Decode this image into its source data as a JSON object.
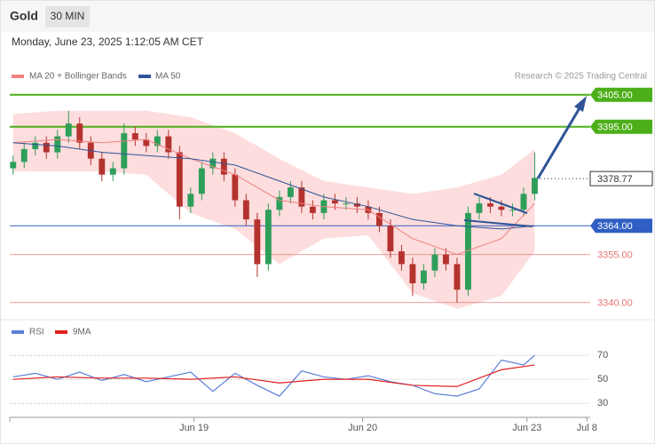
{
  "header": {
    "symbol": "Gold",
    "interval": "30 MIN",
    "timestamp": "Monday, June 23, 2025 1:12:05 AM CET"
  },
  "chart_data": [
    {
      "type": "candlestick",
      "credit": "Research © 2025 Trading Central",
      "up_color": "#2e9e5b",
      "down_color": "#b5332f",
      "xlim": [
        -0.3,
        52
      ],
      "ylim": [
        3336,
        3418
      ],
      "x": [
        0,
        1,
        2,
        3,
        4,
        5,
        6,
        7,
        8,
        9,
        10,
        11,
        12,
        13,
        14,
        15,
        16,
        17,
        18,
        19,
        20,
        21,
        22,
        23,
        24,
        25,
        26,
        27,
        28,
        29,
        30,
        31,
        32,
        33,
        34,
        35,
        36,
        37,
        38,
        39,
        40,
        41,
        42,
        43,
        44,
        45,
        46,
        47
      ],
      "open": [
        3382,
        3384,
        3388,
        3390,
        3387,
        3392,
        3396,
        3390,
        3385,
        3380,
        3382,
        3393,
        3391,
        3389,
        3392,
        3387,
        3370,
        3374,
        3382,
        3385,
        3380,
        3372,
        3366,
        3352,
        3369,
        3373,
        3376,
        3370,
        3368,
        3372,
        3371,
        3371,
        3370,
        3368,
        3364,
        3356,
        3352,
        3346,
        3350,
        3355,
        3352,
        3344,
        3368,
        3371,
        3370,
        3369,
        3369,
        3374
      ],
      "high": [
        3386,
        3390,
        3392,
        3392,
        3394,
        3400,
        3398,
        3392,
        3387,
        3384,
        3396,
        3395,
        3393,
        3394,
        3394,
        3389,
        3376,
        3384,
        3387,
        3387,
        3382,
        3374,
        3368,
        3371,
        3375,
        3378,
        3378,
        3372,
        3374,
        3374,
        3373,
        3373,
        3372,
        3370,
        3366,
        3358,
        3354,
        3352,
        3357,
        3357,
        3354,
        3370,
        3373,
        3373,
        3372,
        3371,
        3376,
        3387
      ],
      "low": [
        3380,
        3382,
        3386,
        3385,
        3385,
        3390,
        3388,
        3383,
        3378,
        3378,
        3380,
        3389,
        3387,
        3387,
        3385,
        3366,
        3368,
        3372,
        3380,
        3378,
        3370,
        3364,
        3348,
        3350,
        3367,
        3371,
        3368,
        3366,
        3366,
        3369,
        3369,
        3368,
        3366,
        3362,
        3354,
        3350,
        3342,
        3344,
        3348,
        3350,
        3340,
        3342,
        3366,
        3368,
        3367,
        3367,
        3367,
        3372
      ],
      "close": [
        3384,
        3388,
        3390,
        3387,
        3392,
        3396,
        3390,
        3385,
        3380,
        3382,
        3393,
        3391,
        3389,
        3392,
        3387,
        3370,
        3374,
        3382,
        3385,
        3380,
        3372,
        3366,
        3352,
        3369,
        3373,
        3376,
        3370,
        3368,
        3372,
        3371,
        3371,
        3370,
        3368,
        3364,
        3356,
        3352,
        3346,
        3350,
        3355,
        3352,
        3344,
        3368,
        3371,
        3370,
        3369,
        3369,
        3374,
        3379
      ],
      "series": [
        {
          "name": "MA 20 + Bollinger Bands",
          "color": "#f08080",
          "band_color": "#fdd5d5",
          "x": [
            0,
            4,
            8,
            12,
            16,
            20,
            24,
            28,
            32,
            36,
            40,
            44,
            47
          ],
          "values": [
            3390,
            3391,
            3390,
            3391,
            3385,
            3380,
            3372,
            3370,
            3369,
            3360,
            3355,
            3360,
            3371
          ],
          "upper": [
            3399,
            3400,
            3400,
            3400,
            3398,
            3393,
            3385,
            3378,
            3376,
            3374,
            3376,
            3380,
            3388
          ],
          "lower": [
            3381,
            3381,
            3381,
            3380,
            3368,
            3363,
            3352,
            3360,
            3361,
            3343,
            3338,
            3342,
            3356
          ]
        },
        {
          "name": "MA 50",
          "color": "#2f5597",
          "x": [
            0,
            4,
            8,
            12,
            16,
            20,
            24,
            28,
            32,
            36,
            40,
            44,
            47
          ],
          "values": [
            3390,
            3389,
            3387,
            3386,
            3385,
            3383,
            3378,
            3373,
            3370,
            3366,
            3364,
            3363,
            3364
          ]
        }
      ],
      "yticks": [
        {
          "value": 3405,
          "label": "3405.00",
          "color": "#4caf1a",
          "style": "box"
        },
        {
          "value": 3395,
          "label": "3395.00",
          "color": "#4caf1a",
          "style": "box"
        },
        {
          "value": 3378.77,
          "label": "3378.77",
          "color": "#333333",
          "style": "current"
        },
        {
          "value": 3364,
          "label": "3364.00",
          "color": "#2f5fc4",
          "style": "box"
        },
        {
          "value": 3355,
          "label": "3355.00",
          "color": "#e57373",
          "style": "text"
        },
        {
          "value": 3340,
          "label": "3340.00",
          "color": "#e57373",
          "style": "text"
        }
      ]
    },
    {
      "type": "line",
      "xlim": [
        -0.3,
        52
      ],
      "ylim": [
        22,
        96
      ],
      "yticks": [
        30,
        50,
        70
      ],
      "grid": true,
      "xticks": [
        {
          "value": 16.3,
          "label": "Jun 19"
        },
        {
          "value": 31.5,
          "label": "Jun 20"
        },
        {
          "value": 46.3,
          "label": "Jun 23"
        },
        {
          "value": 51.7,
          "label": "Jul 8"
        }
      ],
      "series": [
        {
          "name": "RSI",
          "color": "#5b7fd8",
          "x": [
            0,
            2,
            4,
            6,
            8,
            10,
            12,
            14,
            16,
            18,
            20,
            22,
            24,
            26,
            28,
            30,
            32,
            34,
            36,
            38,
            40,
            42,
            44,
            46,
            47
          ],
          "values": [
            52,
            55,
            50,
            56,
            49,
            54,
            48,
            52,
            56,
            40,
            55,
            45,
            36,
            57,
            52,
            50,
            53,
            48,
            45,
            38,
            36,
            42,
            66,
            62,
            70
          ]
        },
        {
          "name": "9MA",
          "color": "#e02020",
          "x": [
            0,
            4,
            8,
            12,
            16,
            20,
            24,
            28,
            32,
            36,
            40,
            44,
            47
          ],
          "values": [
            50,
            52,
            51,
            51,
            50,
            52,
            47,
            50,
            50,
            45,
            44,
            58,
            62
          ]
        }
      ]
    }
  ]
}
